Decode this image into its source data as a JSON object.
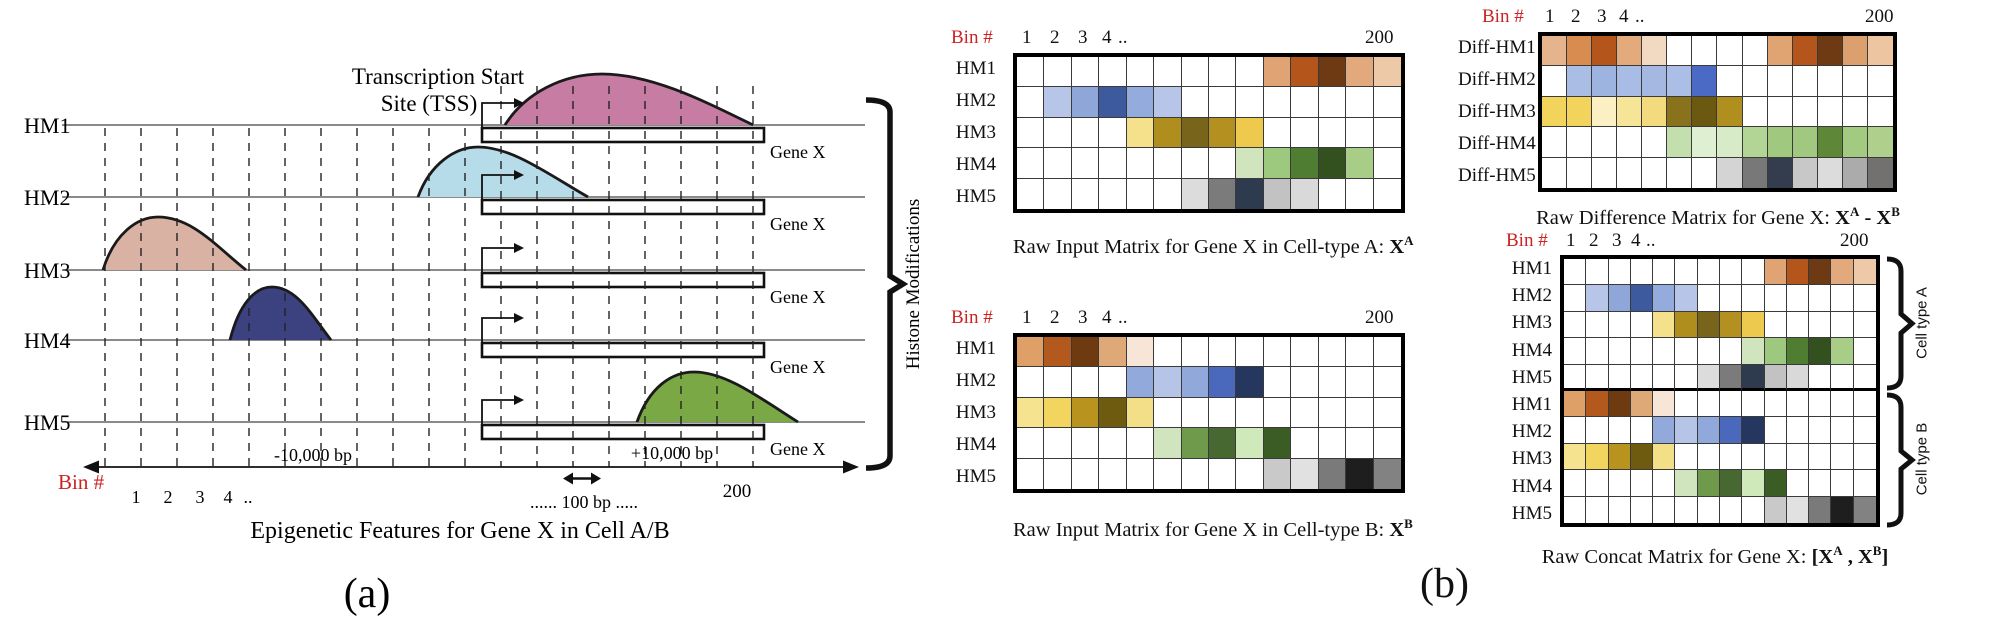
{
  "panel_a": {
    "label": "(a)",
    "tss_label_line1": "Transcription Start",
    "tss_label_line2": "Site (TSS)",
    "bracket_label": "Histone Modifications",
    "caption": "Epigenetic Features for Gene X in Cell A/B",
    "rows": [
      {
        "name": "HM1",
        "gene_label": "Gene X",
        "curve_color": "#c77ca3"
      },
      {
        "name": "HM2",
        "gene_label": "Gene X",
        "curve_color": "#b7dce9"
      },
      {
        "name": "HM3",
        "gene_label": "Gene X",
        "curve_color": "#d9b2a3"
      },
      {
        "name": "HM4",
        "gene_label": "Gene X",
        "curve_color": "#3c4180"
      },
      {
        "name": "HM5",
        "gene_label": "Gene X",
        "curve_color": "#7aa845"
      }
    ],
    "axis": {
      "bin_label": "Bin #",
      "bin_label_color": "#cc2222",
      "numbers": [
        "1",
        "2",
        "3",
        "4",
        ".."
      ],
      "tick_200": "200",
      "minus_bp": "-10,000  bp",
      "plus_bp": "+10,000 bp",
      "hundred_bp": "...... 100 bp  ....."
    }
  },
  "panel_b": {
    "label": "(b)",
    "bin_header": {
      "label": "Bin #",
      "label_color": "#cc2222",
      "n1": "1",
      "n2": "2",
      "n3": "3",
      "n4": "4",
      "dots": "..",
      "last": "200"
    },
    "matrix_a": {
      "row_labels": [
        "HM1",
        "HM2",
        "HM3",
        "HM4",
        "HM5"
      ],
      "caption_parts": [
        {
          "t": "Raw Input Matrix for Gene X in Cell-type A: "
        },
        {
          "t": "X",
          "b": 1
        },
        {
          "t": "A",
          "b": 1,
          "sup": 1
        }
      ],
      "cells": [
        [
          null,
          null,
          null,
          null,
          null,
          null,
          null,
          null,
          null,
          "#e0a374",
          "#b4551c",
          "#6e3a14",
          "#e2aa7c",
          "#eec9a8"
        ],
        [
          null,
          "#b7c5e9",
          "#8fa6d9",
          "#3d5a9f",
          "#94abdd",
          "#b7c5e9",
          null,
          null,
          null,
          null,
          null,
          null,
          null,
          null
        ],
        [
          null,
          null,
          null,
          null,
          "#f5e18c",
          "#b08e1d",
          "#79641c",
          "#b3901f",
          "#edc94e",
          null,
          null,
          null,
          null,
          null
        ],
        [
          null,
          null,
          null,
          null,
          null,
          null,
          null,
          null,
          "#d0e5bd",
          "#9dc97e",
          "#4f7e33",
          "#33511f",
          "#a8cd86",
          null
        ],
        [
          null,
          null,
          null,
          null,
          null,
          null,
          "#dcdcdc",
          "#7b7b7b",
          "#2e3a4d",
          "#c2c2c2",
          "#d9d9d9",
          null,
          null,
          null
        ]
      ]
    },
    "matrix_b": {
      "row_labels": [
        "HM1",
        "HM2",
        "HM3",
        "HM4",
        "HM5"
      ],
      "caption_parts": [
        {
          "t": "Raw Input Matrix for Gene X in Cell-type B: "
        },
        {
          "t": "X",
          "b": 1
        },
        {
          "t": "B",
          "b": 1,
          "sup": 1
        }
      ],
      "cells": [
        [
          "#dfa068",
          "#b3591d",
          "#6e3a10",
          "#dfa877",
          "#f7e6d8",
          null,
          null,
          null,
          null,
          null,
          null,
          null,
          null,
          null
        ],
        [
          null,
          null,
          null,
          null,
          "#92a9db",
          "#b6c4e8",
          "#91a8da",
          "#4a69bd",
          "#25365f",
          null,
          null,
          null,
          null,
          null
        ],
        [
          "#f6e390",
          "#f2d55e",
          "#b8941f",
          "#6e5b10",
          "#f4df89",
          null,
          null,
          null,
          null,
          null,
          null,
          null,
          null,
          null
        ],
        [
          null,
          null,
          null,
          null,
          null,
          "#d0e5bd",
          "#6f9a4b",
          "#476831",
          "#d0e9ba",
          "#3c5c25",
          null,
          null,
          null,
          null
        ],
        [
          null,
          null,
          null,
          null,
          null,
          null,
          null,
          null,
          null,
          "#c9c9c9",
          "#e1e1e1",
          "#7a7a7a",
          "#1e1e1e",
          "#828282"
        ]
      ]
    },
    "diff": {
      "row_labels": [
        "Diff-HM1",
        "Diff-HM2",
        "Diff-HM3",
        "Diff-HM4",
        "Diff-HM5"
      ],
      "caption_parts": [
        {
          "t": "Raw Difference Matrix for Gene X: "
        },
        {
          "t": "X",
          "b": 1
        },
        {
          "t": "A",
          "b": 1,
          "sup": 1
        },
        {
          "t": " - ",
          "b": 1
        },
        {
          "t": "X",
          "b": 1
        },
        {
          "t": "B",
          "b": 1,
          "sup": 1
        }
      ],
      "cells": [
        [
          "#e6b48c",
          "#d98c50",
          "#b4551c",
          "#e3ab7b",
          "#f2d9c2",
          null,
          null,
          null,
          null,
          "#e0a372",
          "#b4551c",
          "#6e3a14",
          "#dc9f6e",
          "#edc5a0"
        ],
        [
          null,
          "#aabde5",
          "#9db3e0",
          "#a9bce5",
          "#a5b8e2",
          "#abbee6",
          "#4a6ac5",
          null,
          null,
          null,
          null,
          null,
          null,
          null
        ],
        [
          "#f2d45c",
          "#f2d45c",
          "#faf0c4",
          "#f6e597",
          "#f3da7f",
          "#8a711b",
          "#6b5911",
          "#b18f1e",
          null,
          null,
          null,
          null,
          null,
          null
        ],
        [
          null,
          null,
          null,
          null,
          null,
          "#c4dfae",
          "#dff0d2",
          "#d8ebc8",
          "#b2d495",
          "#a0c87e",
          "#a0c87e",
          "#5e8838",
          "#a2ca81",
          "#aed08c"
        ],
        [
          null,
          null,
          null,
          null,
          null,
          null,
          null,
          "#d4d4d4",
          "#787878",
          "#333d4e",
          "#c8c8c8",
          "#dcdcdc",
          "#ababab",
          "#737070"
        ]
      ]
    },
    "concat": {
      "row_labels": [
        "HM1",
        "HM2",
        "HM3",
        "HM4",
        "HM5",
        "HM1",
        "HM2",
        "HM3",
        "HM4",
        "HM5"
      ],
      "group_a_label": "Cell type A",
      "group_b_label": "Cell type B",
      "divider_after": 4,
      "caption_parts": [
        {
          "t": "Raw Concat Matrix for Gene X: "
        },
        {
          "t": "[X",
          "b": 1
        },
        {
          "t": "A",
          "b": 1,
          "sup": 1
        },
        {
          "t": " , ",
          "b": 1
        },
        {
          "t": "X",
          "b": 1
        },
        {
          "t": "B",
          "b": 1,
          "sup": 1
        },
        {
          "t": "]",
          "b": 1
        }
      ],
      "cells": [
        [
          null,
          null,
          null,
          null,
          null,
          null,
          null,
          null,
          null,
          "#e0a374",
          "#b4551c",
          "#6e3a14",
          "#e2aa7c",
          "#eec9a8"
        ],
        [
          null,
          "#b7c5e9",
          "#8fa6d9",
          "#3d5a9f",
          "#94abdd",
          "#b7c5e9",
          null,
          null,
          null,
          null,
          null,
          null,
          null,
          null
        ],
        [
          null,
          null,
          null,
          null,
          "#f5e18c",
          "#b08e1d",
          "#79641c",
          "#b3901f",
          "#edc94e",
          null,
          null,
          null,
          null,
          null
        ],
        [
          null,
          null,
          null,
          null,
          null,
          null,
          null,
          null,
          "#d0e5bd",
          "#9dc97e",
          "#4f7e33",
          "#33511f",
          "#a8cd86",
          null
        ],
        [
          null,
          null,
          null,
          null,
          null,
          null,
          "#dcdcdc",
          "#7b7b7b",
          "#2e3a4d",
          "#c2c2c2",
          "#d9d9d9",
          null,
          null,
          null
        ],
        [
          "#dfa068",
          "#b3591d",
          "#6e3a10",
          "#dfa877",
          "#f7e6d8",
          null,
          null,
          null,
          null,
          null,
          null,
          null,
          null,
          null
        ],
        [
          null,
          null,
          null,
          null,
          "#92a9db",
          "#b6c4e8",
          "#91a8da",
          "#4a69bd",
          "#25365f",
          null,
          null,
          null,
          null,
          null
        ],
        [
          "#f6e390",
          "#f2d55e",
          "#b8941f",
          "#6e5b10",
          "#f4df89",
          null,
          null,
          null,
          null,
          null,
          null,
          null,
          null,
          null
        ],
        [
          null,
          null,
          null,
          null,
          null,
          "#d0e5bd",
          "#6f9a4b",
          "#476831",
          "#d0e9ba",
          "#3c5c25",
          null,
          null,
          null,
          null
        ],
        [
          null,
          null,
          null,
          null,
          null,
          null,
          null,
          null,
          null,
          "#c9c9c9",
          "#e1e1e1",
          "#7a7a7a",
          "#1e1e1e",
          "#828282"
        ]
      ]
    }
  }
}
